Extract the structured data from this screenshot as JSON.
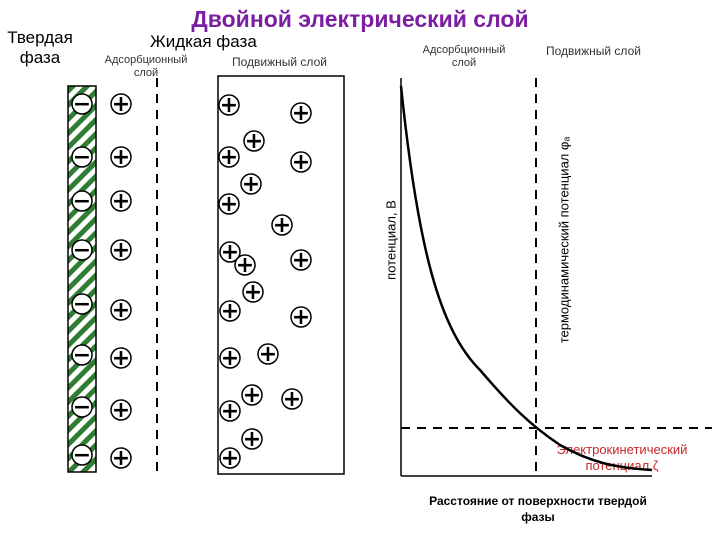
{
  "title": "Двойной электрический слой",
  "solid_phase": "Твердая фаза",
  "liquid_phase": "Жидкая фаза",
  "left_panel": {
    "adsorption_layer": "Адсорбционный слой",
    "mobile_layer": "Подвижный слой",
    "minus_count": 8,
    "plus_adsorbed_count": 8
  },
  "right_panel": {
    "adsorption_layer": "Адсорбционный слой",
    "mobile_layer": "Подвижный слой",
    "y_axis_label": "потенциал, В",
    "thermo_label": "термодинамический потенциал φₐ",
    "zeta_label": "Электрокинетический потенциал ζ",
    "x_axis_label": "Расстояние от поверхности твердой фазы"
  },
  "colors": {
    "title": "#7b1fa2",
    "zeta_text": "#c62828",
    "hatch": "#2e7d32"
  },
  "icons": {
    "minus": "−",
    "plus": "+"
  }
}
